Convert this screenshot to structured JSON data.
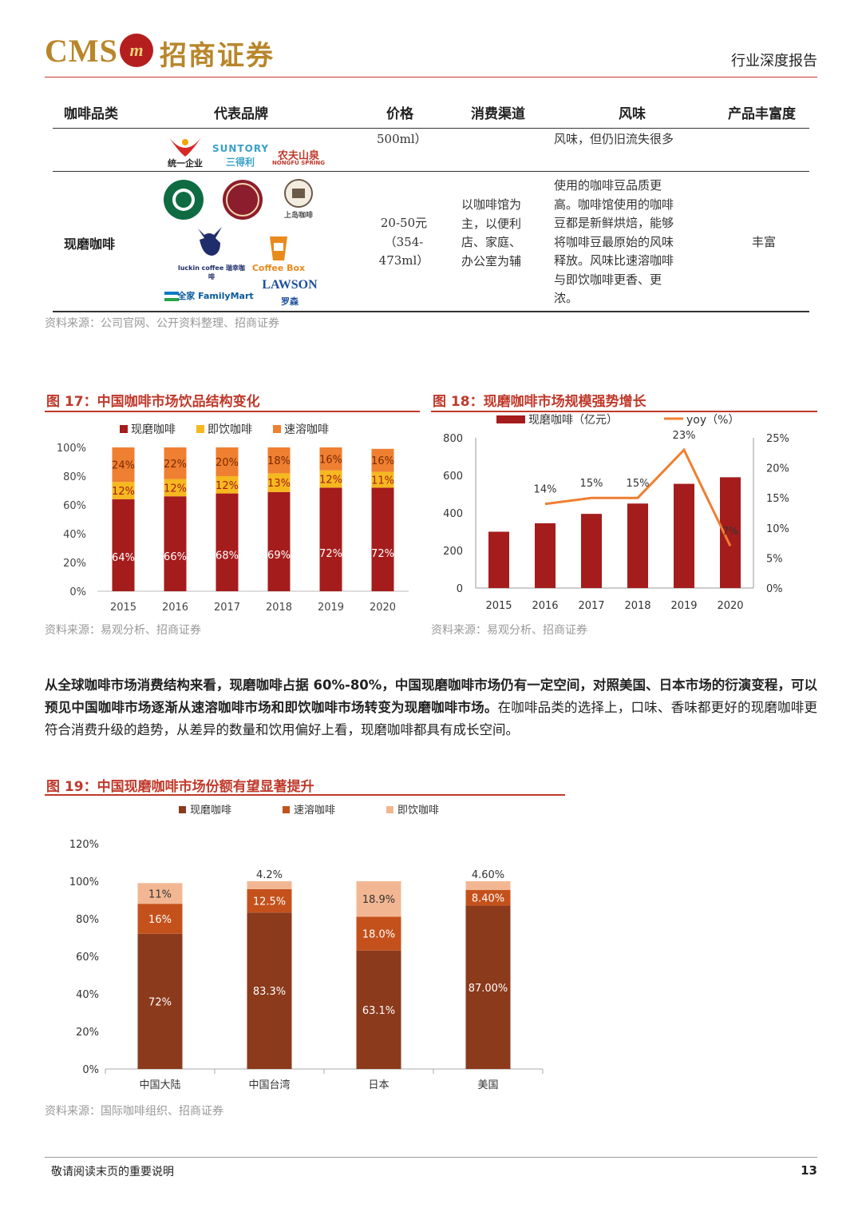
{
  "header": {
    "logo_en": "CMS",
    "logo_mark": "m",
    "logo_cn": "招商证券",
    "report_type": "行业深度报告"
  },
  "table": {
    "headers": [
      "咖啡品类",
      "代表品牌",
      "价格",
      "消费渠道",
      "风味",
      "产品丰富度"
    ],
    "row1": {
      "brands_text": [
        "统一企业",
        "SUNTORY",
        "三得利",
        "农夫山泉",
        "NONGFU SPRING"
      ],
      "price": "500ml）",
      "flavor": "风味，但仍旧流失很多"
    },
    "row2": {
      "category": "现磨咖啡",
      "brands_text": [
        "STARBUCKS",
        "COSTA COFFEE",
        "上岛咖啡",
        "luckin coffee 瑞幸咖啡",
        "Coffee Box",
        "全家 FamilyMart",
        "LAWSON",
        "罗森"
      ],
      "price_lines": [
        "20-50元",
        "（354-",
        "473ml）"
      ],
      "channel_lines": [
        "以咖啡馆为",
        "主，以便利",
        "店、家庭、",
        "办公室为辅"
      ],
      "flavor_lines": [
        "使用的咖啡豆品质更",
        "高。咖啡馆使用的咖啡",
        "豆都是新鲜烘焙，能够",
        "将咖啡豆最原始的风味",
        "释放。风味比速溶咖啡",
        "与即饮咖啡更香、更",
        "浓。"
      ],
      "richness": "丰富"
    },
    "source": "资料来源：公司官网、公开资料整理、招商证券"
  },
  "fig17": {
    "title": "图 17：中国咖啡市场饮品结构变化",
    "source": "资料来源：易观分析、招商证券"
  },
  "fig18": {
    "title": "图 18：现磨咖啡市场规模强势增长",
    "source": "资料来源：易观分析、招商证券"
  },
  "fig19": {
    "title": "图 19：中国现磨咖啡市场份额有望显著提升",
    "source": "资料来源：国际咖啡组织、招商证券"
  },
  "paragraph": {
    "bold": "从全球咖啡市场消费结构来看，现磨咖啡占据 60%-80%，中国现磨咖啡市场仍有一定空间，对照美国、日本市场的衍演变程，可以预见中国咖啡市场逐渐从速溶咖啡市场和即饮咖啡市场转变为现磨咖啡市场。",
    "normal": "在咖啡品类的选择上，口味、香味都更好的现磨咖啡更符合消费升级的趋势，从差异的数量和饮用偏好上看，现磨咖啡都具有成长空间。"
  },
  "footer": {
    "note": "敬请阅读末页的重要说明",
    "page": "13"
  },
  "chart_data": [
    {
      "id": "fig17",
      "type": "bar",
      "stacked": true,
      "categories": [
        "2015",
        "2016",
        "2017",
        "2018",
        "2019",
        "2020"
      ],
      "series": [
        {
          "name": "现磨咖啡",
          "values": [
            64,
            66,
            68,
            69,
            72,
            72
          ],
          "labels": [
            "64%",
            "66%",
            "68%",
            "69%",
            "72%",
            "72%"
          ],
          "color": "#a51c1c"
        },
        {
          "name": "即饮咖啡",
          "values": [
            12,
            12,
            12,
            13,
            12,
            11
          ],
          "labels": [
            "12%",
            "12%",
            "12%",
            "13%",
            "12%",
            "11%"
          ],
          "color": "#f5b81f"
        },
        {
          "name": "速溶咖啡",
          "values": [
            24,
            22,
            20,
            18,
            16,
            16
          ],
          "labels": [
            "24%",
            "22%",
            "20%",
            "18%",
            "16%",
            "16%"
          ],
          "color": "#ef7f31"
        }
      ],
      "yticks": [
        "0%",
        "20%",
        "40%",
        "60%",
        "80%",
        "100%"
      ],
      "ylim": [
        0,
        100
      ],
      "legend": "top"
    },
    {
      "id": "fig18",
      "type": "bar",
      "categories": [
        "2015",
        "2016",
        "2017",
        "2018",
        "2019",
        "2020"
      ],
      "series": [
        {
          "name": "现磨咖啡（亿元）",
          "values": [
            300,
            345,
            395,
            450,
            555,
            590
          ],
          "color": "#a51c1c"
        },
        {
          "name": "yoy（%）",
          "type": "line",
          "axis": "right",
          "values": [
            null,
            14,
            15,
            15,
            23,
            7
          ],
          "labels": [
            "",
            "14%",
            "15%",
            "15%",
            "23%",
            "7%"
          ],
          "color": "#ef7f31"
        }
      ],
      "yticks_left": [
        "0",
        "200",
        "400",
        "600",
        "800"
      ],
      "ylim_left": [
        0,
        800
      ],
      "yticks_right": [
        "0%",
        "5%",
        "10%",
        "15%",
        "20%",
        "25%"
      ],
      "ylim_right": [
        0,
        25
      ],
      "legend": "top"
    },
    {
      "id": "fig19",
      "type": "bar",
      "stacked": true,
      "categories": [
        "中国大陆",
        "中国台湾",
        "日本",
        "美国"
      ],
      "series": [
        {
          "name": "现磨咖啡",
          "values": [
            72,
            83.3,
            63.1,
            87.0
          ],
          "labels": [
            "72%",
            "83.3%",
            "63.1%",
            "87.00%"
          ],
          "color": "#8b3a1c"
        },
        {
          "name": "速溶咖啡",
          "values": [
            16,
            12.5,
            18.0,
            8.4
          ],
          "labels": [
            "16%",
            "12.5%",
            "18.0%",
            "8.40%"
          ],
          "color": "#c4511c"
        },
        {
          "name": "即饮咖啡",
          "values": [
            11,
            4.2,
            18.9,
            4.6
          ],
          "labels": [
            "11%",
            "4.2%",
            "18.9%",
            "4.60%"
          ],
          "color": "#f2b792"
        }
      ],
      "yticks": [
        "0%",
        "20%",
        "40%",
        "60%",
        "80%",
        "100%",
        "120%"
      ],
      "ylim": [
        0,
        120
      ],
      "legend": "top"
    }
  ]
}
